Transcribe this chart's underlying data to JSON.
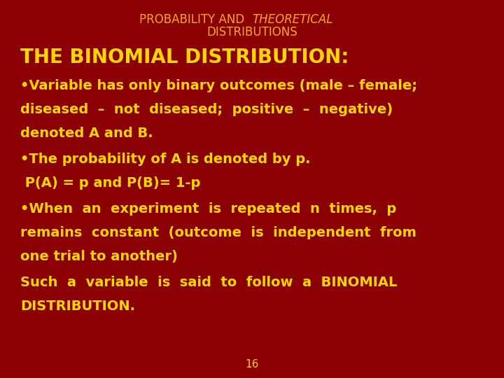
{
  "bg_color": "#8B0000",
  "title_part1": "PROBABILITY AND  ",
  "title_part2": "THEORETICAL",
  "title_line2": "DISTRIBUTIONS",
  "title_color": "#FFA520",
  "heading": "THE BINOMIAL DISTRIBUTION:",
  "heading_color": "#FFD700",
  "heading_fontsize": 20,
  "title_fontsize": 12,
  "body_fontsize": 14,
  "bullet1_lines": [
    "•Variable has only binary outcomes (male – female;",
    "diseased  –  not  diseased;  positive  –  negative)",
    "denoted A and B."
  ],
  "bullet2_line": "•The probability of A is denoted by p.",
  "pa_pb_line": " P(A) = p and P(B)= 1-p",
  "bullet3_lines": [
    "•When  an  experiment  is  repeated  n  times,  p",
    "remains  constant  (outcome  is  independent  from",
    "one trial to another)"
  ],
  "last_lines": [
    "Such  a  variable  is  said  to  follow  a  BINOMIAL",
    "DISTRIBUTION."
  ],
  "body_color": "#FFD700",
  "page_number": "16",
  "page_color": "#FFD700",
  "page_fontsize": 11
}
